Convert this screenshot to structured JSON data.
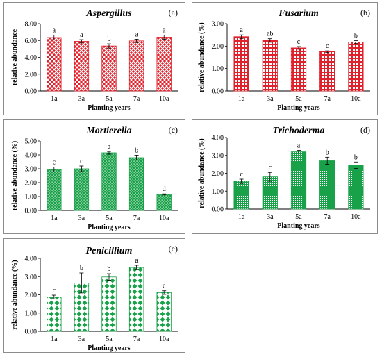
{
  "chart_data": [
    {
      "type": "bar",
      "title": "Aspergillus",
      "tag": "(a)",
      "xlabel": "Planting years",
      "ylabel": "relative abundance",
      "ytick_labels": [
        "0.00",
        "2.00",
        "4.00",
        "6.00",
        "8.00"
      ],
      "ylim": [
        0,
        8
      ],
      "categories": [
        "1a",
        "3a",
        "5a",
        "7a",
        "10a"
      ],
      "values": [
        6.35,
        5.9,
        5.35,
        5.95,
        6.4
      ],
      "errors": [
        0.3,
        0.2,
        0.25,
        0.2,
        0.25
      ],
      "letters": [
        "a",
        "a",
        "b",
        "a",
        "a"
      ],
      "color": "#e0202a",
      "pattern": "cross"
    },
    {
      "type": "bar",
      "title": "Fusarium",
      "tag": "(b)",
      "xlabel": "Planting years",
      "ylabel": "relative abundance (%)",
      "ytick_labels": [
        "0.00",
        "1.00",
        "2.00",
        "3.00"
      ],
      "ylim": [
        0,
        3
      ],
      "categories": [
        "1a",
        "3a",
        "5a",
        "7a",
        "10a"
      ],
      "values": [
        2.42,
        2.25,
        1.92,
        1.75,
        2.18
      ],
      "errors": [
        0.08,
        0.08,
        0.06,
        0.04,
        0.06
      ],
      "letters": [
        "a",
        "ab",
        "c",
        "c",
        "b"
      ],
      "color": "#e0202a",
      "pattern": "grid"
    },
    {
      "type": "bar",
      "title": "Mortierella",
      "tag": "(c)",
      "xlabel": "Planting years",
      "ylabel": "relative abundance (%)",
      "ytick_labels": [
        "0.00",
        "1.00",
        "2.00",
        "3.00",
        "4.00",
        "5.00"
      ],
      "ylim": [
        0,
        5
      ],
      "categories": [
        "1a",
        "3a",
        "5a",
        "7a",
        "10a"
      ],
      "values": [
        2.95,
        3.0,
        4.15,
        3.8,
        1.15
      ],
      "errors": [
        0.18,
        0.2,
        0.1,
        0.18,
        0.04
      ],
      "letters": [
        "c",
        "c",
        "a",
        "b",
        "d"
      ],
      "color": "#19a149",
      "pattern": "dots"
    },
    {
      "type": "bar",
      "title": "Trichoderma",
      "tag": "(d)",
      "xlabel": "Planting years",
      "ylabel": "relative abundance (%)",
      "ytick_labels": [
        "0.00",
        "1.00",
        "2.00",
        "3.00",
        "4.00"
      ],
      "ylim": [
        0,
        4
      ],
      "categories": [
        "1a",
        "3a",
        "5a",
        "7a",
        "10a"
      ],
      "values": [
        1.55,
        1.8,
        3.2,
        2.7,
        2.45
      ],
      "errors": [
        0.12,
        0.25,
        0.08,
        0.2,
        0.18
      ],
      "letters": [
        "c",
        "c",
        "a",
        "b",
        "b"
      ],
      "color": "#19a149",
      "pattern": "finedots"
    },
    {
      "type": "bar",
      "title": "Penicillium",
      "tag": "(e)",
      "xlabel": "Planting years",
      "ylabel": "relative abundance (%)",
      "ytick_labels": [
        "0.00",
        "1.00",
        "2.00",
        "3.00",
        "4.00"
      ],
      "ylim": [
        0,
        4
      ],
      "categories": [
        "1a",
        "3a",
        "5a",
        "7a",
        "10a"
      ],
      "values": [
        1.88,
        2.65,
        2.98,
        3.5,
        2.12
      ],
      "errors": [
        0.1,
        0.55,
        0.18,
        0.12,
        0.1
      ],
      "letters": [
        "c",
        "b",
        "b",
        "a",
        "c"
      ],
      "color": "#19a149",
      "pattern": "diamond"
    }
  ]
}
